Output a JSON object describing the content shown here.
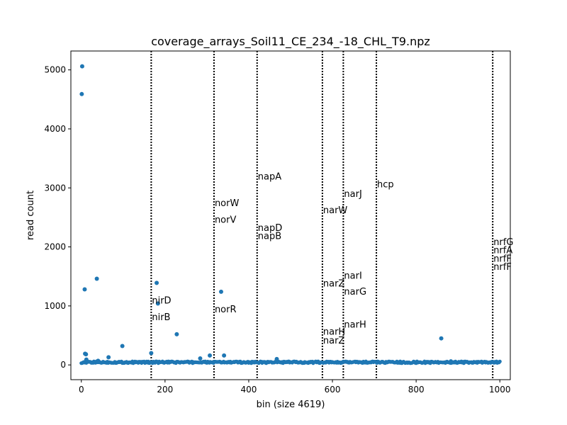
{
  "chart_data": {
    "type": "scatter",
    "title": "coverage_arrays_Soil11_CE_234_-18_CHL_T9.npz",
    "xlabel": "bin (size 4619)",
    "ylabel": "read count",
    "xlim": [
      -25,
      1025
    ],
    "ylim": [
      -250,
      5320
    ],
    "xticks": [
      0,
      200,
      400,
      600,
      800,
      1000
    ],
    "yticks": [
      0,
      1000,
      2000,
      3000,
      4000,
      5000
    ],
    "point_color": "#1f77b4",
    "baseline": {
      "x_start": 0,
      "x_end": 1000,
      "y_min": 30,
      "y_max": 60
    },
    "outliers": [
      {
        "x": 1,
        "y": 4590
      },
      {
        "x": 2,
        "y": 5060
      },
      {
        "x": 8,
        "y": 1280
      },
      {
        "x": 9,
        "y": 190
      },
      {
        "x": 11,
        "y": 180
      },
      {
        "x": 12,
        "y": 90
      },
      {
        "x": 37,
        "y": 1460
      },
      {
        "x": 40,
        "y": 70
      },
      {
        "x": 65,
        "y": 130
      },
      {
        "x": 98,
        "y": 320
      },
      {
        "x": 167,
        "y": 200
      },
      {
        "x": 180,
        "y": 1390
      },
      {
        "x": 183,
        "y": 1040
      },
      {
        "x": 228,
        "y": 520
      },
      {
        "x": 284,
        "y": 110
      },
      {
        "x": 307,
        "y": 160
      },
      {
        "x": 334,
        "y": 1240
      },
      {
        "x": 341,
        "y": 160
      },
      {
        "x": 467,
        "y": 100
      },
      {
        "x": 860,
        "y": 450
      },
      {
        "x": 883,
        "y": 60
      }
    ],
    "gene_markers": [
      {
        "name": "nirD",
        "x": 167,
        "y": 1040
      },
      {
        "name": "nirB",
        "x": 167,
        "y": 760
      },
      {
        "name": "norW",
        "x": 317,
        "y": 2690
      },
      {
        "name": "norV",
        "x": 317,
        "y": 2410
      },
      {
        "name": "norR",
        "x": 317,
        "y": 890
      },
      {
        "name": "napA",
        "x": 420,
        "y": 3140
      },
      {
        "name": "napD",
        "x": 420,
        "y": 2270
      },
      {
        "name": "napB",
        "x": 420,
        "y": 2130
      },
      {
        "name": "narW",
        "x": 576,
        "y": 2570
      },
      {
        "name": "narZ",
        "x": 576,
        "y": 1330
      },
      {
        "name": "narH",
        "x": 576,
        "y": 510
      },
      {
        "name": "narZ",
        "x": 576,
        "y": 360
      },
      {
        "name": "narJ",
        "x": 626,
        "y": 2850
      },
      {
        "name": "narI",
        "x": 626,
        "y": 1460
      },
      {
        "name": "narG",
        "x": 626,
        "y": 1190
      },
      {
        "name": "narH",
        "x": 626,
        "y": 630
      },
      {
        "name": "hcp",
        "x": 705,
        "y": 3010
      },
      {
        "name": "nrfG",
        "x": 983,
        "y": 2030
      },
      {
        "name": "nrfA",
        "x": 983,
        "y": 1890
      },
      {
        "name": "nrfF",
        "x": 983,
        "y": 1750
      },
      {
        "name": "nrfF",
        "x": 983,
        "y": 1610
      }
    ]
  }
}
